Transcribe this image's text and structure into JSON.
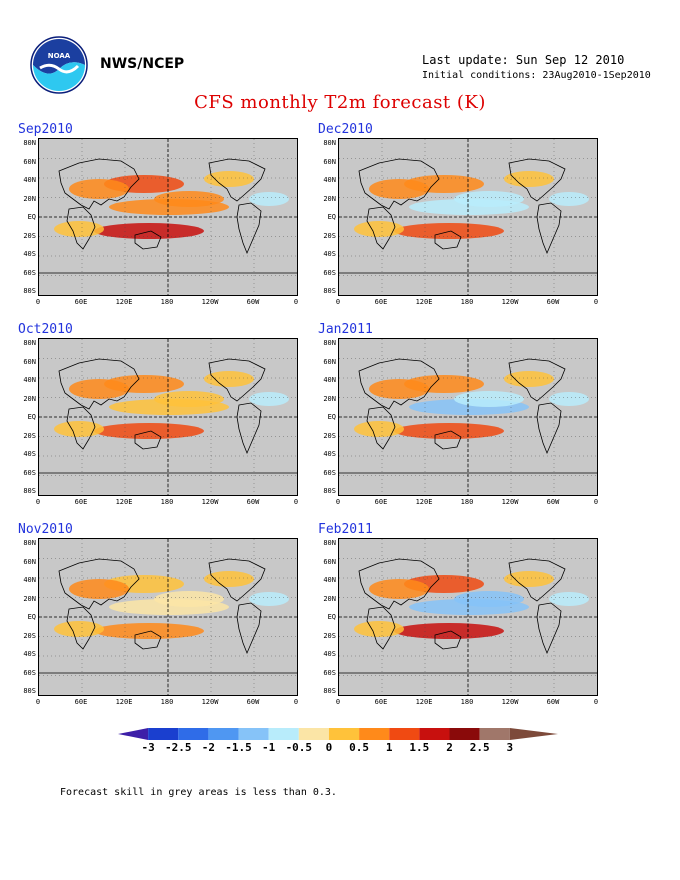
{
  "header": {
    "agency": "NWS/NCEP",
    "last_update": "Last update: Sun Sep 12 2010",
    "initial_conditions": "Initial conditions: 23Aug2010-1Sep2010",
    "title": "CFS monthly T2m forecast (K)"
  },
  "panels": [
    {
      "label": "Sep2010",
      "col": 0,
      "row": 0,
      "anom": 1.0
    },
    {
      "label": "Dec2010",
      "col": 1,
      "row": 0,
      "anom": -0.6
    },
    {
      "label": "Oct2010",
      "col": 0,
      "row": 1,
      "anom": 0.6
    },
    {
      "label": "Jan2011",
      "col": 1,
      "row": 1,
      "anom": -0.8
    },
    {
      "label": "Nov2010",
      "col": 0,
      "row": 2,
      "anom": 0.2
    },
    {
      "label": "Feb2011",
      "col": 1,
      "row": 2,
      "anom": -1.0
    }
  ],
  "lat_labels": [
    "80N",
    "60N",
    "40N",
    "20N",
    "EQ",
    "20S",
    "40S",
    "60S",
    "80S"
  ],
  "lon_labels": [
    "0",
    "60E",
    "120E",
    "180",
    "120W",
    "60W",
    "0"
  ],
  "colorbar": {
    "labels": [
      "-3",
      "-2.5",
      "-2",
      "-1.5",
      "-1",
      "-0.5",
      "0",
      "0.5",
      "1",
      "1.5",
      "2",
      "2.5",
      "3"
    ],
    "colors": [
      "#3d1fa8",
      "#1a3fcf",
      "#2f6ce8",
      "#4f97f2",
      "#86c3f8",
      "#b8ecfb",
      "#fbe5a6",
      "#ffc23a",
      "#ff8a1a",
      "#f04a12",
      "#c8100e",
      "#8a0a0a",
      "#a0776a",
      "#7d4a3a"
    ]
  },
  "footnote": "Forecast skill in grey areas is less than 0.3."
}
